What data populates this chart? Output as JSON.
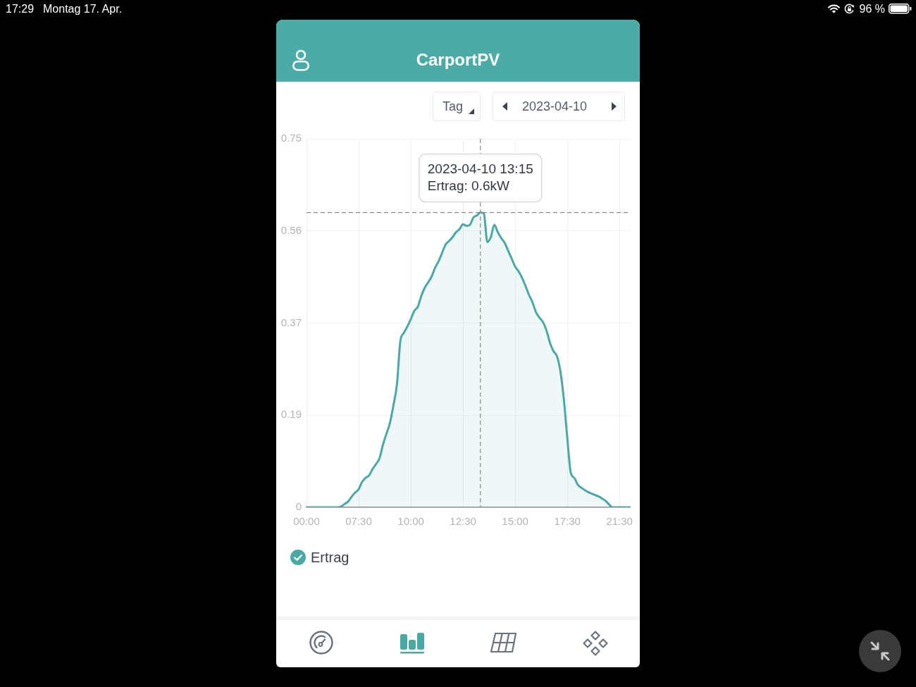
{
  "chart_data": {
    "type": "area",
    "title": "CarportPV",
    "categories": [
      "00:00",
      null,
      null,
      null,
      null,
      null,
      null,
      null,
      null,
      null,
      null,
      null,
      null,
      null,
      null,
      "07:30",
      null,
      null,
      null,
      null,
      null,
      null,
      null,
      null,
      null,
      null,
      null,
      null,
      null,
      null,
      "10:00",
      null,
      null,
      null,
      null,
      null,
      null,
      null,
      null,
      null,
      null,
      null,
      null,
      null,
      null,
      "12:30",
      null,
      null,
      null,
      null,
      null,
      null,
      null,
      null,
      null,
      null,
      null,
      null,
      null,
      null,
      "15:00",
      null,
      null,
      null,
      null,
      null,
      null,
      null,
      null,
      null,
      null,
      null,
      null,
      null,
      null,
      "17:30",
      null,
      null,
      null,
      null,
      null,
      null,
      null,
      null,
      null,
      null,
      null,
      null,
      null,
      null,
      "21:30",
      null,
      null,
      null
    ],
    "series": [
      {
        "name": "Ertrag",
        "color": "#4aa9a4",
        "values": [
          0,
          0,
          0,
          0,
          0,
          0,
          0,
          0,
          0,
          0,
          0.002,
          0.007,
          0.012,
          0.022,
          0.03,
          0.037,
          0.052,
          0.06,
          0.065,
          0.078,
          0.088,
          0.1,
          0.128,
          0.15,
          0.172,
          0.208,
          0.25,
          0.339,
          0.355,
          0.368,
          0.383,
          0.4,
          0.408,
          0.43,
          0.447,
          0.458,
          0.47,
          0.488,
          0.501,
          0.518,
          0.535,
          0.542,
          0.55,
          0.56,
          0.566,
          0.576,
          0.573,
          0.575,
          0.59,
          0.594,
          0.6,
          0.598,
          0.54,
          0.55,
          0.575,
          0.56,
          0.548,
          0.538,
          0.522,
          0.506,
          0.49,
          0.48,
          0.467,
          0.45,
          0.432,
          0.417,
          0.397,
          0.386,
          0.377,
          0.36,
          0.335,
          0.318,
          0.308,
          0.277,
          0.22,
          0.14,
          0.07,
          0.06,
          0.046,
          0.04,
          0.035,
          0.031,
          0.028,
          0.025,
          0.022,
          0.018,
          0.013,
          0.006,
          0,
          0,
          0,
          0,
          0,
          0
        ]
      }
    ],
    "ylim": [
      0,
      0.75
    ],
    "yticks": [
      0,
      {
        "value": 0.1875,
        "label": "0.19"
      },
      {
        "value": 0.375,
        "label": "0.37"
      },
      {
        "value": 0.5625,
        "label": "0.56"
      },
      0.75
    ],
    "ref_lines": [
      {
        "axis": "y",
        "value": 0.6,
        "color": "#8a8a8a",
        "line_style": "dashed"
      }
    ],
    "grid": true,
    "legend": "bottom left",
    "marker": "none",
    "line_style": "solid",
    "annotations": [
      "17:29",
      "Montag 17. Apr.",
      "96 %",
      "Tag",
      "2023-04-10",
      {
        "text": "2023-04-10 13:15\nErtrag: 0.6kW",
        "y": 0.6
      }
    ]
  }
}
